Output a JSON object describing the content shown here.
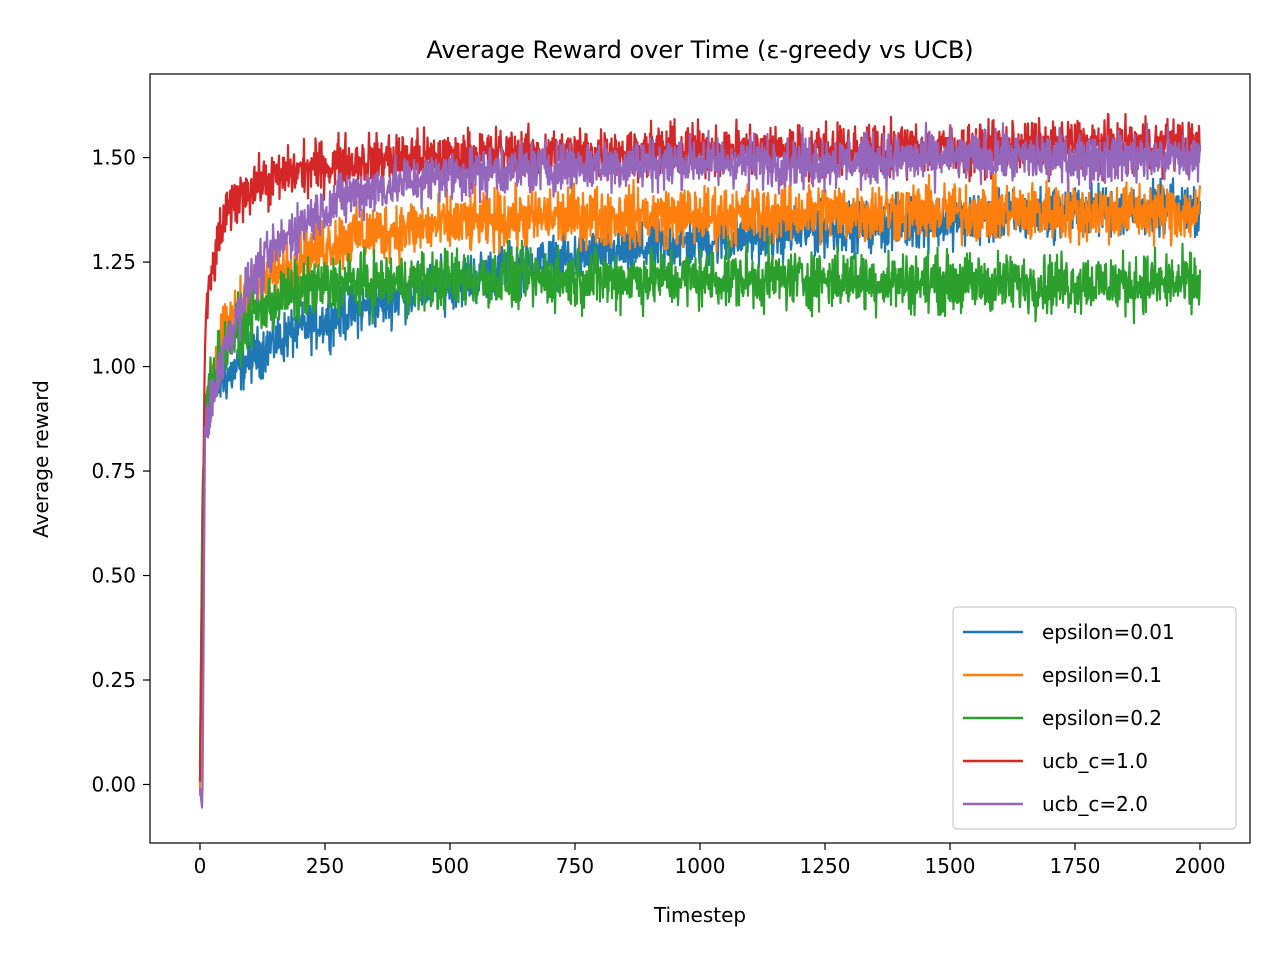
{
  "chart_data": {
    "type": "line",
    "title": "Average Reward over Time (ε-greedy vs UCB)",
    "xlabel": "Timestep",
    "ylabel": "Average reward",
    "xlim": [
      -100,
      2100
    ],
    "ylim": [
      -0.14,
      1.7
    ],
    "x_ticks": [
      0,
      250,
      500,
      750,
      1000,
      1250,
      1500,
      1750,
      2000
    ],
    "x_tick_labels": [
      "0",
      "250",
      "500",
      "750",
      "1000",
      "1250",
      "1500",
      "1750",
      "2000"
    ],
    "y_ticks": [
      0.0,
      0.25,
      0.5,
      0.75,
      1.0,
      1.25,
      1.5
    ],
    "y_tick_labels": [
      "0.00",
      "0.25",
      "0.50",
      "0.75",
      "1.00",
      "1.25",
      "1.50"
    ],
    "grid": false,
    "legend_position": "bottom-right",
    "series": [
      {
        "name": "epsilon=0.01",
        "color": "#1f77b4",
        "noise": 0.03,
        "x": [
          0,
          5,
          10,
          20,
          40,
          60,
          80,
          100,
          150,
          200,
          250,
          300,
          400,
          500,
          600,
          750,
          1000,
          1250,
          1500,
          1750,
          2000
        ],
        "values": [
          0.0,
          0.6,
          0.85,
          0.92,
          0.97,
          0.98,
          1.0,
          1.02,
          1.06,
          1.09,
          1.11,
          1.13,
          1.17,
          1.2,
          1.23,
          1.26,
          1.3,
          1.33,
          1.35,
          1.37,
          1.38
        ]
      },
      {
        "name": "epsilon=0.1",
        "color": "#ff7f0e",
        "noise": 0.035,
        "x": [
          0,
          5,
          10,
          20,
          40,
          60,
          80,
          100,
          150,
          200,
          250,
          300,
          400,
          500,
          600,
          750,
          1000,
          1250,
          1500,
          1750,
          2000
        ],
        "values": [
          0.0,
          0.65,
          0.88,
          0.98,
          1.05,
          1.1,
          1.14,
          1.17,
          1.22,
          1.26,
          1.29,
          1.31,
          1.33,
          1.34,
          1.35,
          1.36,
          1.36,
          1.37,
          1.37,
          1.37,
          1.37
        ]
      },
      {
        "name": "epsilon=0.2",
        "color": "#2ca02c",
        "noise": 0.035,
        "x": [
          0,
          5,
          10,
          20,
          40,
          60,
          80,
          100,
          150,
          200,
          250,
          300,
          400,
          500,
          600,
          750,
          1000,
          1250,
          1500,
          1750,
          2000
        ],
        "values": [
          0.05,
          0.7,
          0.88,
          0.96,
          1.02,
          1.06,
          1.09,
          1.12,
          1.16,
          1.18,
          1.19,
          1.2,
          1.2,
          1.21,
          1.21,
          1.21,
          1.21,
          1.21,
          1.2,
          1.2,
          1.2
        ]
      },
      {
        "name": "ucb_c=1.0",
        "color": "#d62728",
        "noise": 0.03,
        "x": [
          0,
          5,
          10,
          20,
          40,
          60,
          80,
          100,
          150,
          200,
          250,
          300,
          400,
          500,
          600,
          750,
          1000,
          1250,
          1500,
          1750,
          2000
        ],
        "values": [
          0.0,
          0.5,
          1.08,
          1.2,
          1.32,
          1.38,
          1.41,
          1.43,
          1.45,
          1.47,
          1.48,
          1.49,
          1.5,
          1.5,
          1.51,
          1.51,
          1.52,
          1.52,
          1.52,
          1.53,
          1.53
        ]
      },
      {
        "name": "ucb_c=2.0",
        "color": "#9467bd",
        "noise": 0.03,
        "x": [
          0,
          5,
          10,
          20,
          40,
          60,
          80,
          100,
          150,
          200,
          250,
          300,
          400,
          500,
          600,
          750,
          1000,
          1250,
          1500,
          1750,
          2000
        ],
        "values": [
          -0.02,
          -0.04,
          0.85,
          0.9,
          1.0,
          1.08,
          1.14,
          1.2,
          1.28,
          1.34,
          1.38,
          1.41,
          1.44,
          1.46,
          1.47,
          1.48,
          1.49,
          1.49,
          1.5,
          1.5,
          1.5
        ]
      }
    ]
  }
}
